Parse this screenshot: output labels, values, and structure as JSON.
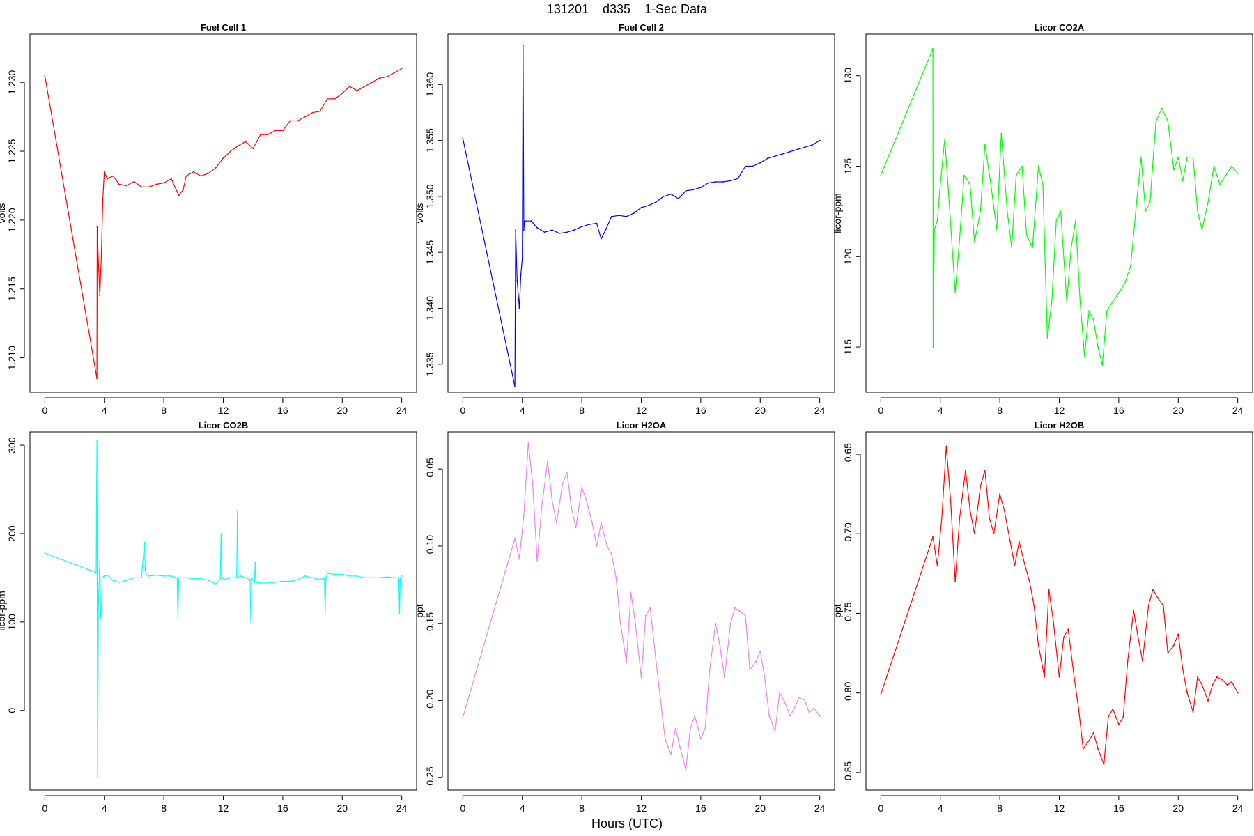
{
  "figure": {
    "title": "131201    d335    1-Sec Data",
    "xlabel": "Hours (UTC)"
  },
  "chart_data": [
    {
      "type": "line",
      "title": "Fuel Cell 1",
      "ylabel": "volts",
      "xlabel": "",
      "color": "#ff0000",
      "xlim": [
        -1,
        25
      ],
      "ylim": [
        1.2075,
        1.2335
      ],
      "xticks": [
        0,
        4,
        8,
        12,
        16,
        20,
        24
      ],
      "yticks": [
        1.21,
        1.215,
        1.22,
        1.225,
        1.23
      ],
      "ytick_labels": [
        "1.210",
        "1.215",
        "1.220",
        "1.225",
        "1.230"
      ],
      "grid": false,
      "series": [
        {
          "x": [
            0,
            3.5,
            3.52,
            3.6,
            3.7,
            3.8,
            3.9,
            4.0,
            4.2,
            4.6,
            5.0,
            5.5,
            6.0,
            6.5,
            7.0,
            7.5,
            8.0,
            8.5,
            9.0,
            9.3,
            9.5,
            10,
            10.5,
            11,
            11.5,
            12,
            12.5,
            13,
            13.5,
            14,
            14.5,
            15,
            15.5,
            16,
            16.5,
            17,
            17.5,
            18,
            18.5,
            19,
            19.5,
            20,
            20.5,
            21,
            21.5,
            22,
            22.5,
            23,
            23.5,
            24
          ],
          "y": [
            1.2305,
            1.2085,
            1.2195,
            1.217,
            1.2145,
            1.2175,
            1.2215,
            1.2235,
            1.223,
            1.2232,
            1.2226,
            1.2225,
            1.2228,
            1.2224,
            1.2224,
            1.2226,
            1.2227,
            1.223,
            1.2218,
            1.2222,
            1.2232,
            1.2235,
            1.2232,
            1.2234,
            1.2238,
            1.2245,
            1.225,
            1.2254,
            1.2257,
            1.2252,
            1.2262,
            1.2262,
            1.2265,
            1.2265,
            1.2272,
            1.2272,
            1.2275,
            1.2278,
            1.2279,
            1.2288,
            1.2288,
            1.2292,
            1.2297,
            1.2294,
            1.2297,
            1.23,
            1.2303,
            1.2304,
            1.2307,
            1.231
          ]
        }
      ]
    },
    {
      "type": "line",
      "title": "Fuel Cell 2",
      "ylabel": "volts",
      "xlabel": "",
      "color": "#0000ff",
      "xlim": [
        -1,
        25
      ],
      "ylim": [
        1.3325,
        1.3645
      ],
      "xticks": [
        0,
        4,
        8,
        12,
        16,
        20,
        24
      ],
      "yticks": [
        1.335,
        1.34,
        1.345,
        1.35,
        1.355,
        1.36
      ],
      "ytick_labels": [
        "1.335",
        "1.340",
        "1.345",
        "1.350",
        "1.355",
        "1.360"
      ],
      "grid": false,
      "series": [
        {
          "x": [
            0,
            3.5,
            3.55,
            3.65,
            3.8,
            3.9,
            4.0,
            4.05,
            4.1,
            4.15,
            4.3,
            4.6,
            5,
            5.5,
            6,
            6.5,
            7,
            7.5,
            8,
            8.5,
            9,
            9.3,
            9.6,
            10,
            10.5,
            11,
            11.5,
            12,
            12.5,
            13,
            13.5,
            14,
            14.5,
            15,
            15.5,
            16,
            16.5,
            17,
            17.5,
            18,
            18.5,
            19,
            19.5,
            20,
            20.5,
            21,
            21.5,
            22,
            22.5,
            23,
            23.5,
            24
          ],
          "y": [
            1.3552,
            1.333,
            1.347,
            1.3425,
            1.34,
            1.343,
            1.3445,
            1.3635,
            1.347,
            1.3478,
            1.3478,
            1.3478,
            1.3472,
            1.3468,
            1.347,
            1.3467,
            1.3468,
            1.347,
            1.3473,
            1.3475,
            1.3476,
            1.3462,
            1.347,
            1.3482,
            1.3483,
            1.3482,
            1.3485,
            1.349,
            1.3492,
            1.3495,
            1.35,
            1.3502,
            1.3498,
            1.3505,
            1.3506,
            1.3508,
            1.3512,
            1.3513,
            1.3513,
            1.3514,
            1.3516,
            1.3527,
            1.3527,
            1.353,
            1.3534,
            1.3536,
            1.3538,
            1.354,
            1.3542,
            1.3544,
            1.3546,
            1.355
          ]
        }
      ]
    },
    {
      "type": "line",
      "title": "Licor CO2A",
      "ylabel": "licor-ppm",
      "xlabel": "",
      "color": "#00ff00",
      "xlim": [
        -1,
        25
      ],
      "ylim": [
        112.5,
        132.3
      ],
      "xticks": [
        0,
        4,
        8,
        12,
        16,
        20,
        24
      ],
      "yticks": [
        115,
        120,
        125,
        130
      ],
      "ytick_labels": [
        "115",
        "120",
        "125",
        "130"
      ],
      "grid": false,
      "series": [
        {
          "x": [
            0,
            3.5,
            3.52,
            3.6,
            3.8,
            4.0,
            4.3,
            4.6,
            5.0,
            5.3,
            5.6,
            6.0,
            6.3,
            6.7,
            7.0,
            7.4,
            7.8,
            8.1,
            8.5,
            8.8,
            9.1,
            9.5,
            9.8,
            10.2,
            10.6,
            10.9,
            11.2,
            11.5,
            11.8,
            12.1,
            12.5,
            12.8,
            13.1,
            13.4,
            13.7,
            14.0,
            14.3,
            14.6,
            14.9,
            15.2,
            15.6,
            16.0,
            16.4,
            16.8,
            17.2,
            17.5,
            17.8,
            18.1,
            18.5,
            18.9,
            19.3,
            19.7,
            20.0,
            20.3,
            20.6,
            21.0,
            21.3,
            21.6,
            22.0,
            22.4,
            22.8,
            23.2,
            23.6,
            24
          ],
          "y": [
            124.5,
            131.5,
            115.0,
            121.5,
            122.0,
            124.0,
            126.5,
            123.0,
            118.0,
            121.0,
            124.5,
            124.0,
            120.8,
            122.5,
            126.2,
            124.0,
            121.5,
            126.8,
            122.5,
            120.5,
            124.5,
            125.0,
            121.2,
            120.5,
            125.0,
            124.0,
            115.5,
            117.5,
            122.0,
            122.5,
            117.5,
            120.5,
            122.0,
            117.5,
            114.5,
            117.0,
            116.5,
            115.0,
            114.0,
            117.0,
            117.5,
            118.0,
            118.5,
            119.5,
            123.0,
            125.5,
            122.5,
            123.0,
            127.5,
            128.2,
            127.5,
            124.8,
            125.5,
            124.2,
            125.5,
            125.5,
            122.5,
            121.5,
            123.0,
            125.0,
            124.0,
            124.5,
            125.0,
            124.6
          ]
        }
      ]
    },
    {
      "type": "line",
      "title": "Licor CO2B",
      "ylabel": "licor-ppm",
      "xlabel": "",
      "color": "#00ffff",
      "xlim": [
        -1,
        25
      ],
      "ylim": [
        -90,
        315
      ],
      "xticks": [
        0,
        4,
        8,
        12,
        16,
        20,
        24
      ],
      "yticks": [
        0,
        100,
        200,
        300
      ],
      "ytick_labels": [
        "0",
        "100",
        "200",
        "300"
      ],
      "grid": false,
      "series": [
        {
          "x": [
            0,
            3.45,
            3.5,
            3.55,
            3.6,
            3.7,
            3.75,
            3.8,
            3.85,
            4.0,
            4.2,
            4.6,
            5.0,
            5.5,
            6.0,
            6.5,
            6.7,
            6.75,
            6.8,
            7.0,
            7.5,
            8.0,
            8.5,
            8.9,
            8.95,
            9.0,
            9.1,
            9.5,
            10,
            10.5,
            11,
            11.5,
            11.8,
            11.85,
            11.9,
            12.1,
            12.5,
            12.9,
            12.95,
            13.0,
            13.2,
            13.5,
            13.8,
            13.85,
            13.9,
            14.1,
            14.15,
            14.2,
            14.4,
            15,
            15.5,
            16,
            16.5,
            17,
            17.5,
            18,
            18.5,
            18.8,
            18.85,
            18.9,
            19.0,
            19.5,
            20,
            20.5,
            21,
            21.5,
            22,
            22.5,
            23,
            23.5,
            23.8,
            23.85,
            23.9,
            24.0
          ],
          "y": [
            178,
            156,
            305,
            -75,
            120,
            170,
            105,
            110,
            150,
            152,
            153,
            147,
            145,
            147,
            150,
            150,
            190,
            160,
            155,
            152,
            153,
            152,
            152,
            150,
            105,
            148,
            150,
            150,
            149,
            149,
            147,
            143,
            148,
            200,
            150,
            148,
            150,
            150,
            225,
            150,
            152,
            150,
            148,
            100,
            150,
            145,
            168,
            145,
            144,
            144,
            145,
            146,
            146,
            148,
            152,
            150,
            148,
            150,
            110,
            150,
            155,
            154,
            154,
            152,
            152,
            150,
            150,
            150,
            151,
            150,
            150,
            110,
            150,
            152
          ]
        }
      ]
    },
    {
      "type": "line",
      "title": "Licor H2OA",
      "ylabel": "ppt",
      "xlabel": "",
      "color": "#ee82ee",
      "xlim": [
        -1,
        25
      ],
      "ylim": [
        -0.258,
        -0.026
      ],
      "xticks": [
        0,
        4,
        8,
        12,
        16,
        20,
        24
      ],
      "yticks": [
        -0.25,
        -0.2,
        -0.15,
        -0.1,
        -0.05
      ],
      "ytick_labels": [
        "-0.25",
        "-0.20",
        "-0.15",
        "-0.10",
        "-0.05"
      ],
      "grid": false,
      "series": [
        {
          "x": [
            0,
            3.5,
            3.8,
            4.1,
            4.4,
            4.7,
            5.0,
            5.3,
            5.7,
            6.0,
            6.3,
            6.7,
            7.0,
            7.3,
            7.6,
            8.0,
            8.3,
            8.7,
            9.0,
            9.3,
            9.7,
            10.0,
            10.3,
            10.6,
            11.0,
            11.3,
            11.6,
            12.0,
            12.3,
            12.6,
            13.0,
            13.3,
            13.6,
            14.0,
            14.3,
            14.6,
            15.0,
            15.3,
            15.6,
            16.0,
            16.3,
            16.6,
            17.0,
            17.3,
            17.6,
            18.0,
            18.3,
            18.6,
            19.0,
            19.3,
            19.7,
            20.0,
            20.3,
            20.6,
            21.0,
            21.3,
            21.6,
            22.0,
            22.3,
            22.6,
            23.0,
            23.3,
            23.6,
            24.0
          ],
          "y": [
            -0.211,
            -0.095,
            -0.108,
            -0.08,
            -0.033,
            -0.06,
            -0.11,
            -0.075,
            -0.045,
            -0.07,
            -0.085,
            -0.06,
            -0.052,
            -0.075,
            -0.088,
            -0.062,
            -0.07,
            -0.085,
            -0.1,
            -0.085,
            -0.1,
            -0.105,
            -0.12,
            -0.15,
            -0.175,
            -0.13,
            -0.15,
            -0.185,
            -0.145,
            -0.14,
            -0.175,
            -0.2,
            -0.225,
            -0.235,
            -0.218,
            -0.23,
            -0.245,
            -0.218,
            -0.21,
            -0.225,
            -0.218,
            -0.18,
            -0.15,
            -0.165,
            -0.185,
            -0.15,
            -0.14,
            -0.142,
            -0.145,
            -0.18,
            -0.175,
            -0.168,
            -0.185,
            -0.21,
            -0.22,
            -0.195,
            -0.2,
            -0.21,
            -0.205,
            -0.198,
            -0.2,
            -0.208,
            -0.205,
            -0.21
          ]
        }
      ]
    },
    {
      "type": "line",
      "title": "Licor H2OB",
      "ylabel": "ppt",
      "xlabel": "",
      "color": "#ff0000",
      "xlim": [
        -1,
        25
      ],
      "ylim": [
        -0.861,
        -0.636
      ],
      "xticks": [
        0,
        4,
        8,
        12,
        16,
        20,
        24
      ],
      "yticks": [
        -0.85,
        -0.8,
        -0.75,
        -0.7,
        -0.65
      ],
      "ytick_labels": [
        "-0.85",
        "-0.80",
        "-0.75",
        "-0.70",
        "-0.65"
      ],
      "grid": false,
      "series": [
        {
          "x": [
            0,
            3.5,
            3.8,
            4.1,
            4.4,
            4.7,
            5.0,
            5.3,
            5.7,
            6.0,
            6.3,
            6.7,
            7.0,
            7.3,
            7.6,
            8.0,
            8.3,
            8.7,
            9.0,
            9.3,
            9.7,
            10.0,
            10.3,
            10.6,
            11.0,
            11.3,
            11.6,
            12.0,
            12.3,
            12.6,
            13.0,
            13.3,
            13.6,
            14.0,
            14.3,
            14.6,
            15.0,
            15.3,
            15.6,
            16.0,
            16.3,
            16.6,
            17.0,
            17.3,
            17.6,
            18.0,
            18.3,
            18.6,
            19.0,
            19.3,
            19.7,
            20.0,
            20.3,
            20.6,
            21.0,
            21.3,
            21.6,
            22.0,
            22.3,
            22.6,
            23.0,
            23.3,
            23.6,
            24.0
          ],
          "y": [
            -0.801,
            -0.702,
            -0.72,
            -0.69,
            -0.645,
            -0.68,
            -0.73,
            -0.69,
            -0.66,
            -0.685,
            -0.7,
            -0.67,
            -0.66,
            -0.69,
            -0.7,
            -0.675,
            -0.685,
            -0.705,
            -0.72,
            -0.705,
            -0.72,
            -0.73,
            -0.745,
            -0.77,
            -0.79,
            -0.735,
            -0.755,
            -0.79,
            -0.765,
            -0.76,
            -0.79,
            -0.81,
            -0.835,
            -0.83,
            -0.825,
            -0.835,
            -0.845,
            -0.815,
            -0.81,
            -0.82,
            -0.815,
            -0.78,
            -0.748,
            -0.765,
            -0.78,
            -0.745,
            -0.735,
            -0.74,
            -0.745,
            -0.775,
            -0.77,
            -0.763,
            -0.785,
            -0.8,
            -0.812,
            -0.79,
            -0.795,
            -0.805,
            -0.795,
            -0.79,
            -0.792,
            -0.795,
            -0.793,
            -0.8
          ]
        }
      ]
    }
  ]
}
